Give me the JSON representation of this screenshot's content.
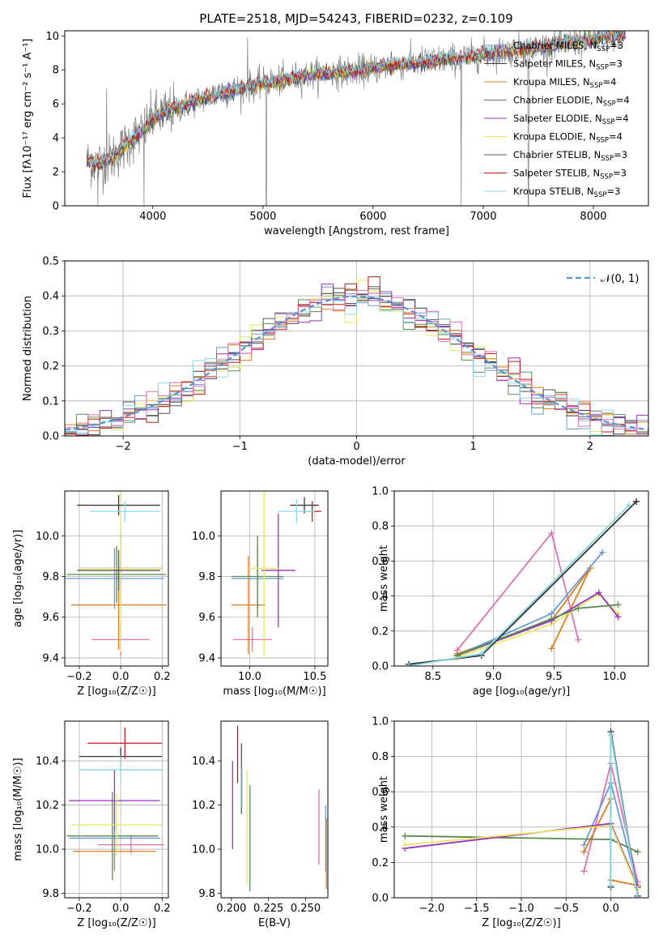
{
  "figure": {
    "title": "PLATE=2518, MJD=54243, FIBERID=0232, z=0.109"
  },
  "colors": {
    "Chabrier MILES": "#6a9bd8",
    "Salpeter MILES": "#3a3a3a",
    "Kroupa MILES": "#e07b1d",
    "Chabrier ELODIE": "#5a8a50",
    "Salpeter ELODIE": "#9b30c0",
    "Kroupa ELODIE": "#e8e860",
    "Chabrier STELIB": "#555555",
    "Salpeter STELIB": "#c01818",
    "Kroupa STELIB": "#8ad8e8",
    "pink": "#e070b0",
    "data": "#808080"
  },
  "chart_data": [
    {
      "id": "spectrum",
      "type": "line",
      "title": "PLATE=2518, MJD=54243, FIBERID=0232, z=0.109",
      "xlabel": "wavelength [Angstrom, rest frame]",
      "ylabel": "Flux [fλ10⁻¹⁷ erg cm⁻² s⁻¹ A⁻¹]",
      "xlim": [
        3200,
        8500
      ],
      "ylim": [
        0,
        10.3
      ],
      "xticks": [
        "4000",
        "5000",
        "6000",
        "7000",
        "8000"
      ],
      "yticks": [
        "0",
        "2",
        "4",
        "6",
        "8",
        "10"
      ],
      "grid": false,
      "legend_position": "upper-right",
      "legend": [
        {
          "label": "Chabrier MILES, N",
          "sub": "SSP",
          "suffix": "=3",
          "color": "#6a9bd8"
        },
        {
          "label": "Salpeter MILES, N",
          "sub": "SSP",
          "suffix": "=3",
          "color": "#3a3a3a"
        },
        {
          "label": "Kroupa MILES, N",
          "sub": "SSP",
          "suffix": "=4",
          "color": "#e07b1d"
        },
        {
          "label": "Chabrier ELODIE, N",
          "sub": "SSP",
          "suffix": "=4",
          "color": "#5a8a50"
        },
        {
          "label": "Salpeter ELODIE, N",
          "sub": "SSP",
          "suffix": "=4",
          "color": "#9b30c0"
        },
        {
          "label": "Kroupa ELODIE, N",
          "sub": "SSP",
          "suffix": "=4",
          "color": "#e8e860"
        },
        {
          "label": "Chabrier STELIB, N",
          "sub": "SSP",
          "suffix": "=3",
          "color": "#555555"
        },
        {
          "label": "Salpeter STELIB, N",
          "sub": "SSP",
          "suffix": "=3",
          "color": "#c01818"
        },
        {
          "label": "Kroupa STELIB, N",
          "sub": "SSP",
          "suffix": "=3",
          "color": "#8ad8e8"
        }
      ],
      "continuum_knots": [
        [
          3400,
          2.6
        ],
        [
          3500,
          2.5
        ],
        [
          3600,
          2.7
        ],
        [
          3700,
          3.2
        ],
        [
          3800,
          3.9
        ],
        [
          3900,
          4.3
        ],
        [
          4000,
          5.2
        ],
        [
          4200,
          5.7
        ],
        [
          4400,
          6.2
        ],
        [
          4600,
          6.6
        ],
        [
          4800,
          6.9
        ],
        [
          5000,
          7.2
        ],
        [
          5200,
          7.4
        ],
        [
          5500,
          7.8
        ],
        [
          5800,
          7.9
        ],
        [
          6100,
          8.2
        ],
        [
          6500,
          8.5
        ],
        [
          6800,
          8.7
        ],
        [
          7200,
          9.1
        ],
        [
          7600,
          9.4
        ],
        [
          8000,
          9.8
        ],
        [
          8300,
          10.1
        ]
      ],
      "spikes": [
        [
          3500,
          0
        ],
        [
          3920,
          0
        ],
        [
          5030,
          0
        ],
        [
          6800,
          0
        ],
        [
          7410,
          0
        ],
        [
          3580,
          6.9
        ],
        [
          4860,
          9.9
        ],
        [
          7700,
          10.3
        ],
        [
          8150,
          10.3
        ]
      ]
    },
    {
      "id": "residuals",
      "type": "histogram",
      "xlabel": "(data-model)/error",
      "ylabel": "Normed distribution",
      "xlim": [
        -2.5,
        2.5
      ],
      "ylim": [
        0,
        0.5
      ],
      "xticks": [
        "−2",
        "−1",
        "0",
        "1",
        "2"
      ],
      "yticks": [
        "0.0",
        "0.1",
        "0.2",
        "0.3",
        "0.4",
        "0.5"
      ],
      "grid": true,
      "legend_position": "upper-right",
      "legend_label": "𝒩(0, 1)",
      "bin_width": 0.1,
      "reference_curve": "normal(0,1)"
    },
    {
      "id": "age_vs_Z",
      "type": "errorbar",
      "xlabel": "Z [log₁₀(Z/Z☉)]",
      "ylabel": "age  [log₁₀(age/yr)]",
      "xlim": [
        -0.27,
        0.23
      ],
      "ylim": [
        9.36,
        10.22
      ],
      "xticks": [
        -0.2,
        0.0,
        0.2
      ],
      "yticks": [
        9.4,
        9.6,
        9.8,
        10.0
      ],
      "grid": true,
      "points": [
        {
          "x": 0.0,
          "xerr": 0.14,
          "y": 9.49,
          "yerr": 0.08,
          "color": "#e070b0"
        },
        {
          "x": -0.01,
          "xerr": 0.23,
          "y": 9.66,
          "yerr": 0.22,
          "color": "#e07b1d"
        },
        {
          "x": -0.03,
          "xerr": 0.24,
          "y": 9.79,
          "yerr": 0.15,
          "color": "#6a9bd8"
        },
        {
          "x": -0.02,
          "xerr": 0.24,
          "y": 9.81,
          "yerr": 0.14,
          "color": "#5a8a50"
        },
        {
          "x": 0.0,
          "xerr": 0.2,
          "y": 9.84,
          "yerr": 0.18,
          "color": "#9b30c0"
        },
        {
          "x": 0.0,
          "xerr": 0.2,
          "y": 9.84,
          "yerr": 0.41,
          "color": "#e8e860"
        },
        {
          "x": -0.01,
          "xerr": 0.2,
          "y": 9.83,
          "yerr": 0.1,
          "color": "#555555"
        },
        {
          "x": -0.01,
          "xerr": 0.2,
          "y": 10.15,
          "yerr": 0.05,
          "color": "#3a3a3a"
        },
        {
          "x": 0.02,
          "xerr": 0.17,
          "y": 10.12,
          "yerr": 0.05,
          "color": "#8ad8e8"
        }
      ]
    },
    {
      "id": "age_vs_mass",
      "type": "errorbar",
      "xlabel": "mass [log₁₀(M/M☉)]",
      "ylabel": "",
      "xlim": [
        9.78,
        10.6
      ],
      "ylim": [
        9.36,
        10.22
      ],
      "xticks": [
        10.0,
        10.5
      ],
      "yticks": [
        9.4,
        9.6,
        9.8,
        10.0
      ],
      "grid": true,
      "points": [
        {
          "x": 10.02,
          "xerr": 0.15,
          "y": 9.49,
          "yerr": 0.06,
          "color": "#e070b0"
        },
        {
          "x": 9.99,
          "xerr": 0.13,
          "y": 9.66,
          "yerr": 0.24,
          "color": "#e07b1d"
        },
        {
          "x": 10.06,
          "xerr": 0.2,
          "y": 9.79,
          "yerr": 0.15,
          "color": "#6a9bd8"
        },
        {
          "x": 10.06,
          "xerr": 0.2,
          "y": 9.8,
          "yerr": 0.2,
          "color": "#5a8a50"
        },
        {
          "x": 10.22,
          "xerr": 0.13,
          "y": 9.83,
          "yerr": 0.28,
          "color": "#9b30c0"
        },
        {
          "x": 10.11,
          "xerr": 0.12,
          "y": 9.84,
          "yerr": 0.43,
          "color": "#e8e860"
        },
        {
          "x": 10.42,
          "xerr": 0.11,
          "y": 10.15,
          "yerr": 0.04,
          "color": "#3a3a3a"
        },
        {
          "x": 10.48,
          "xerr": 0.07,
          "y": 10.12,
          "yerr": 0.05,
          "color": "#c01818"
        },
        {
          "x": 10.36,
          "xerr": 0.14,
          "y": 10.12,
          "yerr": 0.06,
          "color": "#8ad8e8"
        }
      ]
    },
    {
      "id": "massweight_vs_age",
      "type": "line",
      "xlabel": "age  [log₁₀(age/yr)]",
      "ylabel": "mass weight",
      "xlim": [
        8.18,
        10.28
      ],
      "ylim": [
        0,
        1.0
      ],
      "xticks": [
        8.5,
        9.0,
        9.5,
        10.0
      ],
      "yticks": [
        0.0,
        0.2,
        0.4,
        0.6,
        0.8,
        1.0
      ],
      "grid": true,
      "series": [
        {
          "color": "#e070b0",
          "x": [
            8.7,
            9.48,
            9.7
          ],
          "y": [
            0.09,
            0.76,
            0.15
          ]
        },
        {
          "color": "#e07b1d",
          "x": [
            8.7,
            9.48,
            9.8,
            9.48
          ],
          "y": [
            0.07,
            0.26,
            0.56,
            0.1
          ]
        },
        {
          "color": "#6a9bd8",
          "x": [
            8.7,
            9.48,
            9.9
          ],
          "y": [
            0.06,
            0.3,
            0.65
          ]
        },
        {
          "color": "#e8e860",
          "x": [
            8.7,
            9.48,
            9.87,
            10.03
          ],
          "y": [
            0.05,
            0.24,
            0.41,
            0.3
          ]
        },
        {
          "color": "#9b30c0",
          "x": [
            8.7,
            9.48,
            9.87,
            10.03
          ],
          "y": [
            0.06,
            0.26,
            0.42,
            0.28
          ]
        },
        {
          "color": "#5a8a50",
          "x": [
            8.7,
            9.48,
            9.7,
            10.03
          ],
          "y": [
            0.06,
            0.27,
            0.33,
            0.35
          ]
        },
        {
          "color": "#555555",
          "x": [
            8.3,
            8.9,
            10.18
          ],
          "y": [
            0.01,
            0.06,
            0.94
          ]
        },
        {
          "color": "#3a3a3a",
          "x": [
            8.3,
            8.9,
            10.18
          ],
          "y": [
            0.01,
            0.06,
            0.94
          ]
        },
        {
          "color": "#8ad8e8",
          "x": [
            8.3,
            8.9,
            10.12
          ],
          "y": [
            0.0,
            0.07,
            0.92
          ]
        }
      ]
    },
    {
      "id": "mass_vs_Z",
      "type": "errorbar",
      "xlabel": "Z [log₁₀(Z/Z☉)]",
      "ylabel": "mass [log₁₀(M/M☉)]",
      "xlim": [
        -0.27,
        0.23
      ],
      "ylim": [
        9.78,
        10.58
      ],
      "xticks": [
        -0.2,
        0.0,
        0.2
      ],
      "yticks": [
        9.8,
        10.0,
        10.2,
        10.4
      ],
      "grid": true,
      "points": [
        {
          "x": 0.05,
          "xerr": 0.16,
          "y": 10.02,
          "yerr": 0.04,
          "color": "#e070b0"
        },
        {
          "x": -0.03,
          "xerr": 0.2,
          "y": 9.99,
          "yerr": 0.09,
          "color": "#e07b1d"
        },
        {
          "x": -0.03,
          "xerr": 0.22,
          "y": 10.05,
          "yerr": 0.13,
          "color": "#6a9bd8"
        },
        {
          "x": -0.04,
          "xerr": 0.22,
          "y": 10.06,
          "yerr": 0.2,
          "color": "#5a8a50"
        },
        {
          "x": -0.03,
          "xerr": 0.22,
          "y": 10.22,
          "yerr": 0.14,
          "color": "#9b30c0"
        },
        {
          "x": -0.02,
          "xerr": 0.22,
          "y": 10.11,
          "yerr": 0.14,
          "color": "#e8e860"
        },
        {
          "x": 0.0,
          "xerr": 0.2,
          "y": 10.42,
          "yerr": 0.04,
          "color": "#3a3a3a"
        },
        {
          "x": 0.02,
          "xerr": 0.18,
          "y": 10.48,
          "yerr": 0.07,
          "color": "#c01818"
        },
        {
          "x": 0.0,
          "xerr": 0.2,
          "y": 10.36,
          "yerr": 0.06,
          "color": "#8ad8e8"
        }
      ]
    },
    {
      "id": "mass_vs_EBV",
      "type": "errorbar",
      "xlabel": "E(B-V)",
      "ylabel": "",
      "xlim": [
        0.193,
        0.265
      ],
      "ylim": [
        9.78,
        10.58
      ],
      "xticks": [
        "0.200",
        "0.225",
        "0.250"
      ],
      "yticks": [
        9.8,
        10.0,
        10.2,
        10.4
      ],
      "grid": false,
      "points": [
        {
          "x": 0.2008,
          "y": 10.2,
          "yerr": 0.2,
          "color": "#9b30c0"
        },
        {
          "x": 0.2042,
          "y": 10.43,
          "yerr": 0.13,
          "color": "#c01818"
        },
        {
          "x": 0.2068,
          "y": 10.32,
          "yerr": 0.16,
          "color": "#555555"
        },
        {
          "x": 0.2072,
          "y": 10.28,
          "yerr": 0.09,
          "color": "#8ad8e8"
        },
        {
          "x": 0.2105,
          "y": 10.1,
          "yerr": 0.26,
          "color": "#e8e860"
        },
        {
          "x": 0.2125,
          "y": 10.05,
          "yerr": 0.24,
          "color": "#5a8a50"
        },
        {
          "x": 0.259,
          "y": 10.1,
          "yerr": 0.17,
          "color": "#e070b0"
        },
        {
          "x": 0.2635,
          "y": 10.05,
          "yerr": 0.15,
          "color": "#6a9bd8"
        },
        {
          "x": 0.264,
          "y": 9.98,
          "yerr": 0.16,
          "color": "#e07b1d"
        }
      ]
    },
    {
      "id": "massweight_vs_Z",
      "type": "line",
      "xlabel": "Z [log₁₀(Z/Z☉)]",
      "ylabel": "mass weight",
      "xlim": [
        -2.42,
        0.42
      ],
      "ylim": [
        0,
        1.0
      ],
      "xticks": [
        "−2.0",
        "−1.5",
        "−1.0",
        "−0.5",
        "0.0"
      ],
      "yticks": [
        0.0,
        0.2,
        0.4,
        0.6,
        0.8,
        1.0
      ],
      "grid": true,
      "series": [
        {
          "color": "#e070b0",
          "x": [
            -0.3,
            0.0,
            0.3
          ],
          "y": [
            0.15,
            0.76,
            0.09
          ]
        },
        {
          "color": "#e07b1d",
          "x": [
            -0.3,
            0.0,
            0.0,
            0.3
          ],
          "y": [
            0.26,
            0.56,
            0.1,
            0.07
          ]
        },
        {
          "color": "#6a9bd8",
          "x": [
            -0.3,
            0.0,
            0.3
          ],
          "y": [
            0.3,
            0.65,
            0.06
          ]
        },
        {
          "color": "#5a8a50",
          "x": [
            -2.3,
            0.0,
            0.3
          ],
          "y": [
            0.35,
            0.33,
            0.26
          ]
        },
        {
          "color": "#9b30c0",
          "x": [
            -2.3,
            0.0,
            0.3
          ],
          "y": [
            0.28,
            0.42,
            0.06
          ]
        },
        {
          "color": "#e8e860",
          "x": [
            -2.3,
            0.0,
            0.3
          ],
          "y": [
            0.3,
            0.41,
            0.05
          ]
        },
        {
          "color": "#3a3a3a",
          "x": [
            0.0,
            0.0,
            0.3
          ],
          "y": [
            0.06,
            0.94,
            0.01
          ]
        },
        {
          "color": "#555555",
          "x": [
            0.0,
            0.0,
            0.3
          ],
          "y": [
            0.06,
            0.94,
            0.01
          ]
        },
        {
          "color": "#8ad8e8",
          "x": [
            0.0,
            0.0,
            0.3
          ],
          "y": [
            0.07,
            0.92,
            0.0
          ]
        }
      ]
    }
  ]
}
